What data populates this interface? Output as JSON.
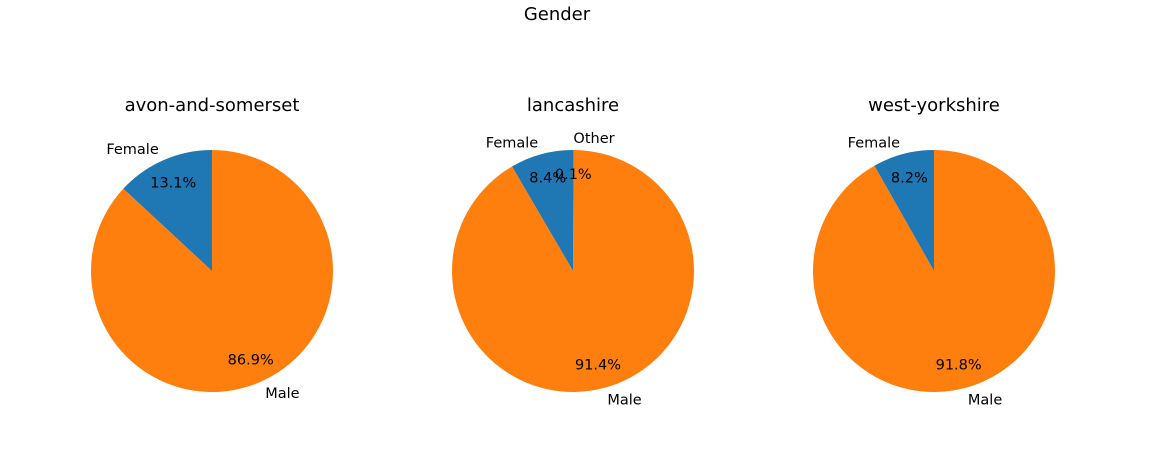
{
  "figure": {
    "suptitle": "Gender"
  },
  "chart_data": [
    {
      "type": "pie",
      "title": "avon-and-somerset",
      "categories": [
        "Female",
        "Male"
      ],
      "values": [
        13.1,
        86.9
      ],
      "value_labels": [
        "13.1%",
        "86.9%"
      ],
      "colors": [
        "#1f77b4",
        "#ff7f0e"
      ],
      "start_angle": 90,
      "direction": "counterclockwise"
    },
    {
      "type": "pie",
      "title": "lancashire",
      "categories": [
        "Female",
        "Male",
        "Other"
      ],
      "values": [
        8.4,
        91.4,
        0.1
      ],
      "value_labels": [
        "8.4%",
        "91.4%",
        "0.1%"
      ],
      "colors": [
        "#1f77b4",
        "#ff7f0e",
        "#2ca02c"
      ],
      "start_angle": 90,
      "direction": "counterclockwise"
    },
    {
      "type": "pie",
      "title": "west-yorkshire",
      "categories": [
        "Female",
        "Male"
      ],
      "values": [
        8.2,
        91.8
      ],
      "value_labels": [
        "8.2%",
        "91.8%"
      ],
      "colors": [
        "#1f77b4",
        "#ff7f0e"
      ],
      "start_angle": 90,
      "direction": "counterclockwise"
    }
  ]
}
